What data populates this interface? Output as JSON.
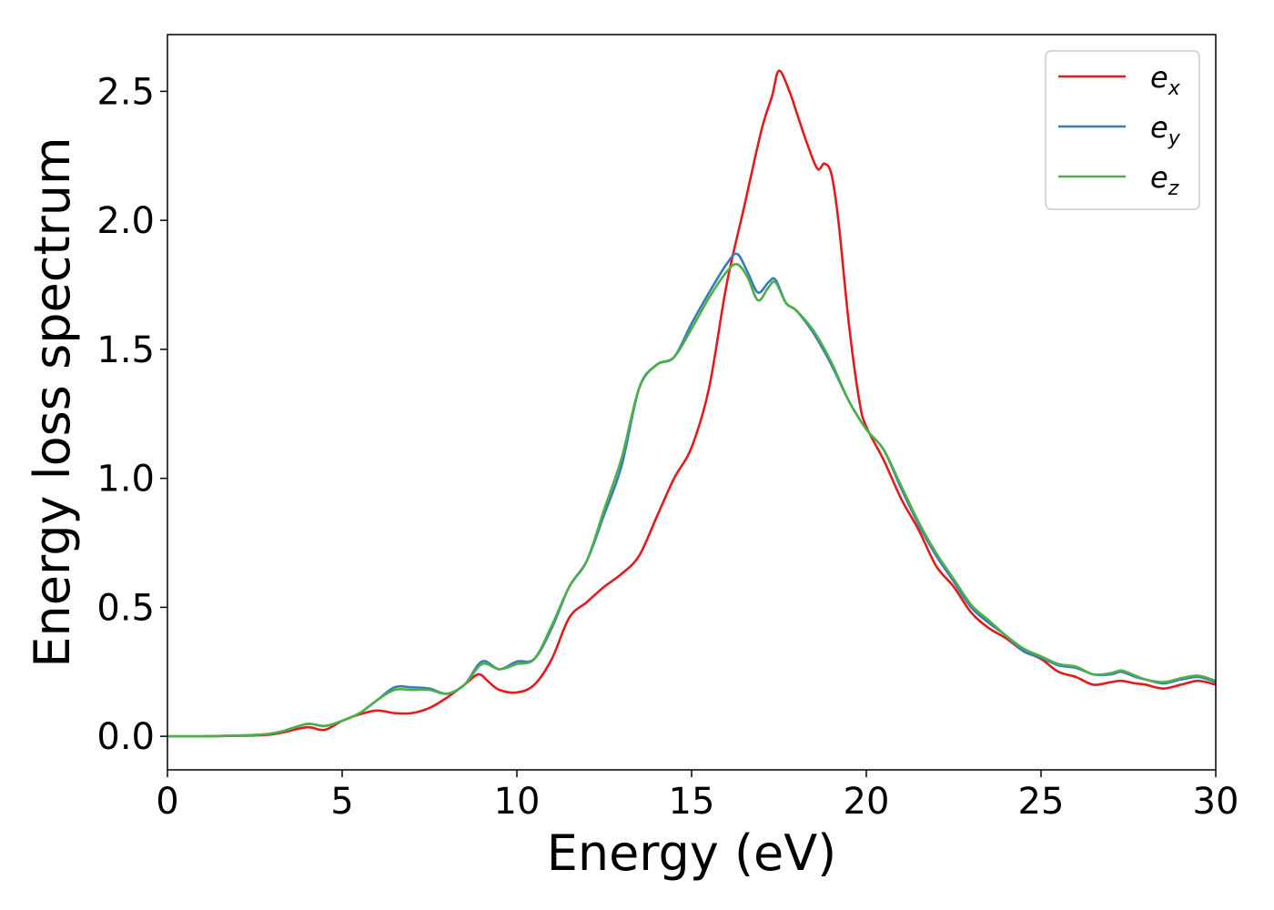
{
  "chart_data": {
    "type": "line",
    "title": "",
    "xlabel": "Energy (eV)",
    "ylabel": "Energy loss spectrum",
    "xlim": [
      0,
      30
    ],
    "ylim": [
      -0.13,
      2.72
    ],
    "xticks": [
      0,
      5,
      10,
      15,
      20,
      25,
      30
    ],
    "yticks": [
      0.0,
      0.5,
      1.0,
      1.5,
      2.0,
      2.5
    ],
    "xtick_labels": [
      "0",
      "5",
      "10",
      "15",
      "20",
      "25",
      "30"
    ],
    "ytick_labels": [
      "0.0",
      "0.5",
      "1.0",
      "1.5",
      "2.0",
      "2.5"
    ],
    "grid": false,
    "legend_position": "top-right",
    "series": [
      {
        "name": "e_x",
        "label_base": "e",
        "label_sub": "x",
        "color": "#e41a1c",
        "x": [
          0,
          1,
          2,
          2.8,
          3.3,
          4.0,
          4.5,
          5.0,
          5.5,
          6.0,
          6.5,
          7.0,
          7.5,
          8.0,
          8.5,
          8.9,
          9.2,
          9.5,
          10.0,
          10.5,
          11.0,
          11.5,
          12.0,
          12.5,
          13.0,
          13.5,
          14.0,
          14.5,
          15.0,
          15.5,
          16.0,
          16.5,
          17.0,
          17.3,
          17.5,
          17.8,
          18.0,
          18.3,
          18.6,
          18.8,
          19.0,
          19.2,
          19.5,
          19.8,
          20.0,
          20.5,
          21.0,
          21.5,
          22.0,
          22.5,
          23.0,
          23.5,
          24.0,
          24.5,
          25.0,
          25.5,
          26.0,
          26.5,
          27.0,
          27.3,
          27.7,
          28.0,
          28.5,
          29.0,
          29.5,
          30.0
        ],
        "y": [
          0.0,
          0.0,
          0.002,
          0.005,
          0.015,
          0.035,
          0.025,
          0.06,
          0.085,
          0.1,
          0.09,
          0.09,
          0.11,
          0.15,
          0.2,
          0.24,
          0.21,
          0.18,
          0.17,
          0.2,
          0.3,
          0.46,
          0.52,
          0.58,
          0.63,
          0.7,
          0.85,
          1.0,
          1.12,
          1.35,
          1.75,
          2.05,
          2.35,
          2.48,
          2.58,
          2.5,
          2.42,
          2.3,
          2.2,
          2.22,
          2.18,
          2.0,
          1.6,
          1.3,
          1.2,
          1.07,
          0.92,
          0.8,
          0.66,
          0.58,
          0.48,
          0.42,
          0.38,
          0.33,
          0.3,
          0.25,
          0.23,
          0.2,
          0.21,
          0.215,
          0.205,
          0.2,
          0.185,
          0.2,
          0.215,
          0.2
        ]
      },
      {
        "name": "e_y",
        "label_base": "e",
        "label_sub": "y",
        "color": "#377eb8",
        "x": [
          0,
          1,
          2,
          2.8,
          3.3,
          4.0,
          4.5,
          5.0,
          5.5,
          6.0,
          6.5,
          7.0,
          7.5,
          8.0,
          8.5,
          9.0,
          9.5,
          10.0,
          10.5,
          11.0,
          11.5,
          12.0,
          12.5,
          13.0,
          13.5,
          14.0,
          14.5,
          15.0,
          15.5,
          16.0,
          16.3,
          16.6,
          16.9,
          17.2,
          17.4,
          17.7,
          18.0,
          18.5,
          19.0,
          19.5,
          20.0,
          20.5,
          21.0,
          21.5,
          22.0,
          22.5,
          23.0,
          23.5,
          24.0,
          24.5,
          25.0,
          25.5,
          26.0,
          26.5,
          27.0,
          27.3,
          27.7,
          28.0,
          28.5,
          29.0,
          29.5,
          30.0
        ],
        "y": [
          0.0,
          0.0,
          0.003,
          0.008,
          0.02,
          0.048,
          0.04,
          0.06,
          0.09,
          0.14,
          0.19,
          0.19,
          0.185,
          0.165,
          0.2,
          0.29,
          0.26,
          0.29,
          0.3,
          0.42,
          0.58,
          0.68,
          0.86,
          1.05,
          1.35,
          1.44,
          1.47,
          1.6,
          1.72,
          1.83,
          1.87,
          1.8,
          1.72,
          1.76,
          1.77,
          1.68,
          1.65,
          1.56,
          1.44,
          1.3,
          1.19,
          1.11,
          0.96,
          0.82,
          0.7,
          0.6,
          0.5,
          0.44,
          0.39,
          0.33,
          0.305,
          0.275,
          0.265,
          0.24,
          0.24,
          0.25,
          0.23,
          0.22,
          0.205,
          0.22,
          0.23,
          0.21
        ]
      },
      {
        "name": "e_z",
        "label_base": "e",
        "label_sub": "z",
        "color": "#4daf4a",
        "x": [
          0,
          1,
          2,
          2.8,
          3.3,
          4.0,
          4.5,
          5.0,
          5.5,
          6.0,
          6.5,
          7.0,
          7.5,
          8.0,
          8.5,
          9.0,
          9.5,
          10.0,
          10.5,
          11.0,
          11.5,
          12.0,
          12.5,
          13.0,
          13.5,
          14.0,
          14.5,
          15.0,
          15.5,
          16.0,
          16.3,
          16.6,
          16.9,
          17.2,
          17.4,
          17.7,
          18.0,
          18.5,
          19.0,
          19.5,
          20.0,
          20.5,
          21.0,
          21.5,
          22.0,
          22.5,
          23.0,
          23.5,
          24.0,
          24.5,
          25.0,
          25.5,
          26.0,
          26.5,
          27.0,
          27.3,
          27.7,
          28.0,
          28.5,
          29.0,
          29.5,
          30.0
        ],
        "y": [
          0.0,
          0.0,
          0.003,
          0.008,
          0.02,
          0.048,
          0.04,
          0.06,
          0.09,
          0.14,
          0.18,
          0.18,
          0.18,
          0.165,
          0.2,
          0.28,
          0.26,
          0.28,
          0.3,
          0.43,
          0.58,
          0.68,
          0.88,
          1.08,
          1.35,
          1.44,
          1.47,
          1.58,
          1.7,
          1.8,
          1.83,
          1.78,
          1.69,
          1.74,
          1.76,
          1.68,
          1.65,
          1.57,
          1.45,
          1.3,
          1.19,
          1.11,
          0.97,
          0.83,
          0.71,
          0.61,
          0.51,
          0.45,
          0.39,
          0.34,
          0.31,
          0.28,
          0.27,
          0.24,
          0.245,
          0.255,
          0.235,
          0.22,
          0.21,
          0.225,
          0.235,
          0.215
        ]
      }
    ]
  }
}
